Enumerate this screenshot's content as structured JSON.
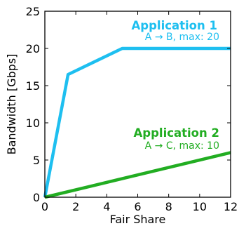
{
  "chart_data": {
    "type": "line",
    "xlabel": "Fair Share",
    "ylabel": "Bandwidth [Gbps]",
    "xlim": [
      0,
      12
    ],
    "ylim": [
      0,
      25
    ],
    "xticks": [
      0,
      2,
      4,
      6,
      8,
      10,
      12
    ],
    "yticks": [
      0,
      5,
      10,
      15,
      20,
      25
    ],
    "grid": false,
    "series": [
      {
        "name": "Application 1",
        "note": "A → B, max: 20",
        "color": "#1ebff0",
        "x": [
          0,
          1.5,
          5,
          12
        ],
        "y": [
          0,
          16.5,
          20,
          20
        ]
      },
      {
        "name": "Application 2",
        "note": "A → C, max: 10",
        "color": "#22ad22",
        "x": [
          0,
          12
        ],
        "y": [
          0,
          6
        ]
      }
    ],
    "annotations": [
      {
        "series_index": 0,
        "title": "Application 1",
        "subtitle": "A → B, max: 20"
      },
      {
        "series_index": 1,
        "title": "Application 2",
        "subtitle": "A → C, max: 10"
      }
    ]
  }
}
